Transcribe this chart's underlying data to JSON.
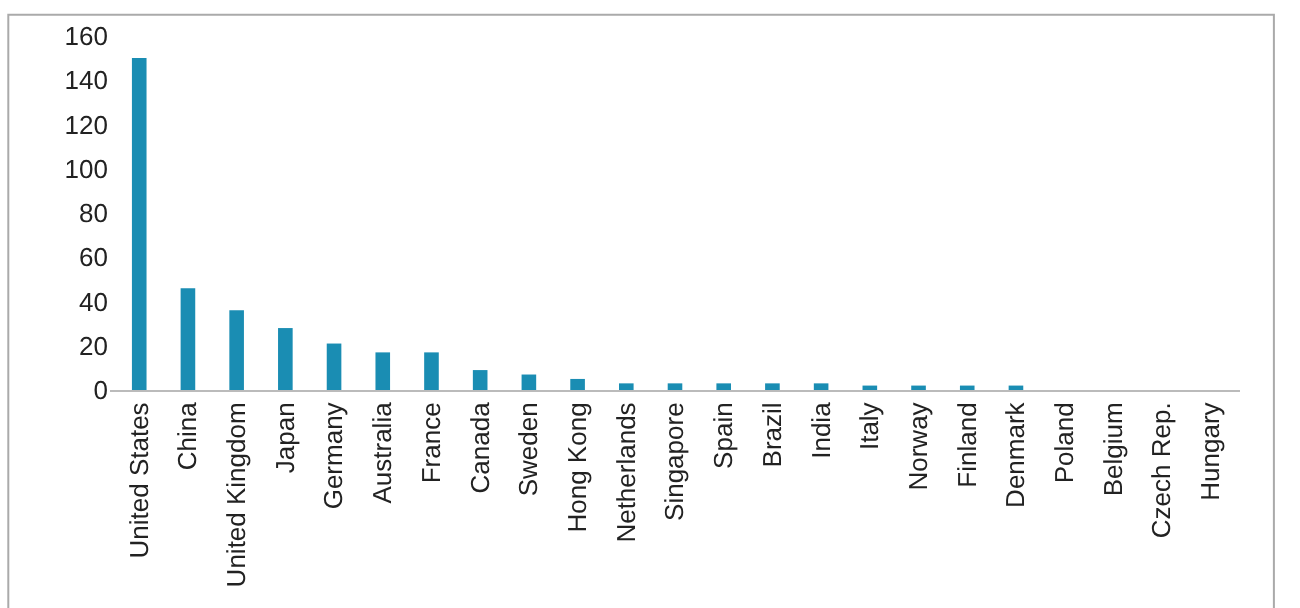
{
  "chart_data": {
    "type": "bar",
    "categories": [
      "United States",
      "China",
      "United Kingdom",
      "Japan",
      "Germany",
      "Australia",
      "France",
      "Canada",
      "Sweden",
      "Hong Kong",
      "Netherlands",
      "Singapore",
      "Spain",
      "Brazil",
      "India",
      "Italy",
      "Norway",
      "Finland",
      "Denmark",
      "Poland",
      "Belgium",
      "Czech Rep.",
      "Hungary"
    ],
    "values": [
      150,
      46,
      36,
      28,
      21,
      17,
      17,
      9,
      7,
      5,
      3,
      3,
      3,
      3,
      3,
      2,
      2,
      2,
      2,
      0,
      0,
      0,
      0
    ],
    "color": "#1a8db3",
    "ylim": [
      0,
      160
    ],
    "yticks": [
      0,
      20,
      40,
      60,
      80,
      100,
      120,
      140,
      160
    ]
  }
}
